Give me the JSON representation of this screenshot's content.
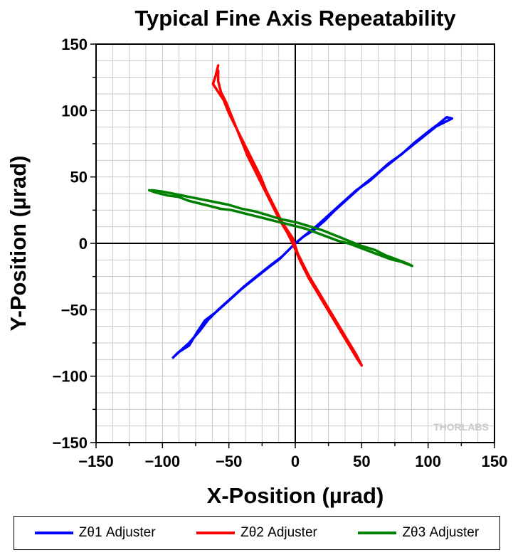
{
  "chart_data": {
    "type": "scatter",
    "title": "Typical Fine Axis Repeatability",
    "xlabel": "X-Position (µrad)",
    "ylabel": "Y-Position (µrad)",
    "xlim": [
      -150,
      150
    ],
    "ylim": [
      -150,
      150
    ],
    "xticks": [
      -150,
      -100,
      -50,
      0,
      50,
      100,
      150
    ],
    "yticks": [
      -150,
      -100,
      -50,
      0,
      50,
      100,
      150
    ],
    "grid": true,
    "legend_position": "bottom",
    "watermark": "THORLABS",
    "series": [
      {
        "name": "Zθ1 Adjuster",
        "color": "#0000ff",
        "points": [
          [
            -92,
            -86
          ],
          [
            -88,
            -82
          ],
          [
            -80,
            -77
          ],
          [
            -74,
            -67
          ],
          [
            -68,
            -58
          ],
          [
            -60,
            -52
          ],
          [
            -50,
            -43
          ],
          [
            -40,
            -34
          ],
          [
            -30,
            -26
          ],
          [
            -20,
            -18
          ],
          [
            -12,
            -12
          ],
          [
            -6,
            -6
          ],
          [
            0,
            0
          ],
          [
            6,
            5
          ],
          [
            14,
            10
          ],
          [
            22,
            17
          ],
          [
            30,
            25
          ],
          [
            40,
            34
          ],
          [
            50,
            43
          ],
          [
            60,
            51
          ],
          [
            70,
            60
          ],
          [
            80,
            67
          ],
          [
            90,
            76
          ],
          [
            100,
            84
          ],
          [
            108,
            90
          ],
          [
            114,
            95
          ],
          [
            118,
            94
          ],
          [
            114,
            92
          ],
          [
            106,
            88
          ],
          [
            96,
            80
          ],
          [
            86,
            72
          ],
          [
            76,
            64
          ],
          [
            66,
            56
          ],
          [
            56,
            47
          ],
          [
            46,
            40
          ],
          [
            36,
            31
          ],
          [
            26,
            22
          ],
          [
            16,
            13
          ],
          [
            6,
            5
          ],
          [
            -2,
            -2
          ],
          [
            -10,
            -10
          ],
          [
            -18,
            -16
          ],
          [
            -28,
            -24
          ],
          [
            -38,
            -32
          ],
          [
            -48,
            -41
          ],
          [
            -58,
            -50
          ],
          [
            -66,
            -58
          ],
          [
            -72,
            -66
          ],
          [
            -80,
            -75
          ],
          [
            -90,
            -84
          ]
        ]
      },
      {
        "name": "Zθ2 Adjuster",
        "color": "#ff0000",
        "points": [
          [
            -58,
            134
          ],
          [
            -60,
            126
          ],
          [
            -62,
            120
          ],
          [
            -58,
            114
          ],
          [
            -54,
            108
          ],
          [
            -50,
            98
          ],
          [
            -46,
            90
          ],
          [
            -42,
            82
          ],
          [
            -38,
            74
          ],
          [
            -34,
            66
          ],
          [
            -30,
            58
          ],
          [
            -26,
            50
          ],
          [
            -22,
            40
          ],
          [
            -18,
            32
          ],
          [
            -14,
            24
          ],
          [
            -10,
            16
          ],
          [
            -6,
            10
          ],
          [
            -2,
            4
          ],
          [
            0,
            -2
          ],
          [
            2,
            -8
          ],
          [
            6,
            -16
          ],
          [
            10,
            -24
          ],
          [
            16,
            -34
          ],
          [
            22,
            -44
          ],
          [
            28,
            -54
          ],
          [
            34,
            -64
          ],
          [
            40,
            -74
          ],
          [
            46,
            -84
          ],
          [
            50,
            -92
          ],
          [
            46,
            -86
          ],
          [
            40,
            -76
          ],
          [
            34,
            -66
          ],
          [
            28,
            -56
          ],
          [
            22,
            -46
          ],
          [
            16,
            -36
          ],
          [
            10,
            -26
          ],
          [
            4,
            -14
          ],
          [
            -2,
            0
          ],
          [
            -6,
            8
          ],
          [
            -12,
            18
          ],
          [
            -18,
            30
          ],
          [
            -24,
            42
          ],
          [
            -30,
            54
          ],
          [
            -36,
            66
          ],
          [
            -40,
            76
          ],
          [
            -44,
            86
          ],
          [
            -48,
            96
          ],
          [
            -52,
            106
          ],
          [
            -56,
            114
          ],
          [
            -58,
            122
          ],
          [
            -58,
            130
          ]
        ]
      },
      {
        "name": "Zθ3 Adjuster",
        "color": "#008000",
        "points": [
          [
            -110,
            40
          ],
          [
            -104,
            38
          ],
          [
            -96,
            36
          ],
          [
            -88,
            35
          ],
          [
            -80,
            32
          ],
          [
            -72,
            30
          ],
          [
            -64,
            28
          ],
          [
            -56,
            26
          ],
          [
            -48,
            25
          ],
          [
            -40,
            23
          ],
          [
            -32,
            21
          ],
          [
            -24,
            19
          ],
          [
            -16,
            17
          ],
          [
            -8,
            15
          ],
          [
            0,
            13
          ],
          [
            8,
            11
          ],
          [
            16,
            8
          ],
          [
            24,
            5
          ],
          [
            32,
            2
          ],
          [
            40,
            0
          ],
          [
            48,
            -3
          ],
          [
            56,
            -6
          ],
          [
            64,
            -9
          ],
          [
            72,
            -12
          ],
          [
            80,
            -14
          ],
          [
            88,
            -17
          ],
          [
            84,
            -15
          ],
          [
            76,
            -12
          ],
          [
            68,
            -9
          ],
          [
            60,
            -5
          ],
          [
            50,
            -2
          ],
          [
            40,
            2
          ],
          [
            30,
            6
          ],
          [
            20,
            10
          ],
          [
            10,
            13
          ],
          [
            0,
            16
          ],
          [
            -10,
            18
          ],
          [
            -20,
            21
          ],
          [
            -30,
            24
          ],
          [
            -40,
            26
          ],
          [
            -50,
            29
          ],
          [
            -60,
            31
          ],
          [
            -70,
            33
          ],
          [
            -80,
            35
          ],
          [
            -90,
            37
          ],
          [
            -100,
            39
          ],
          [
            -108,
            40
          ]
        ]
      }
    ]
  }
}
